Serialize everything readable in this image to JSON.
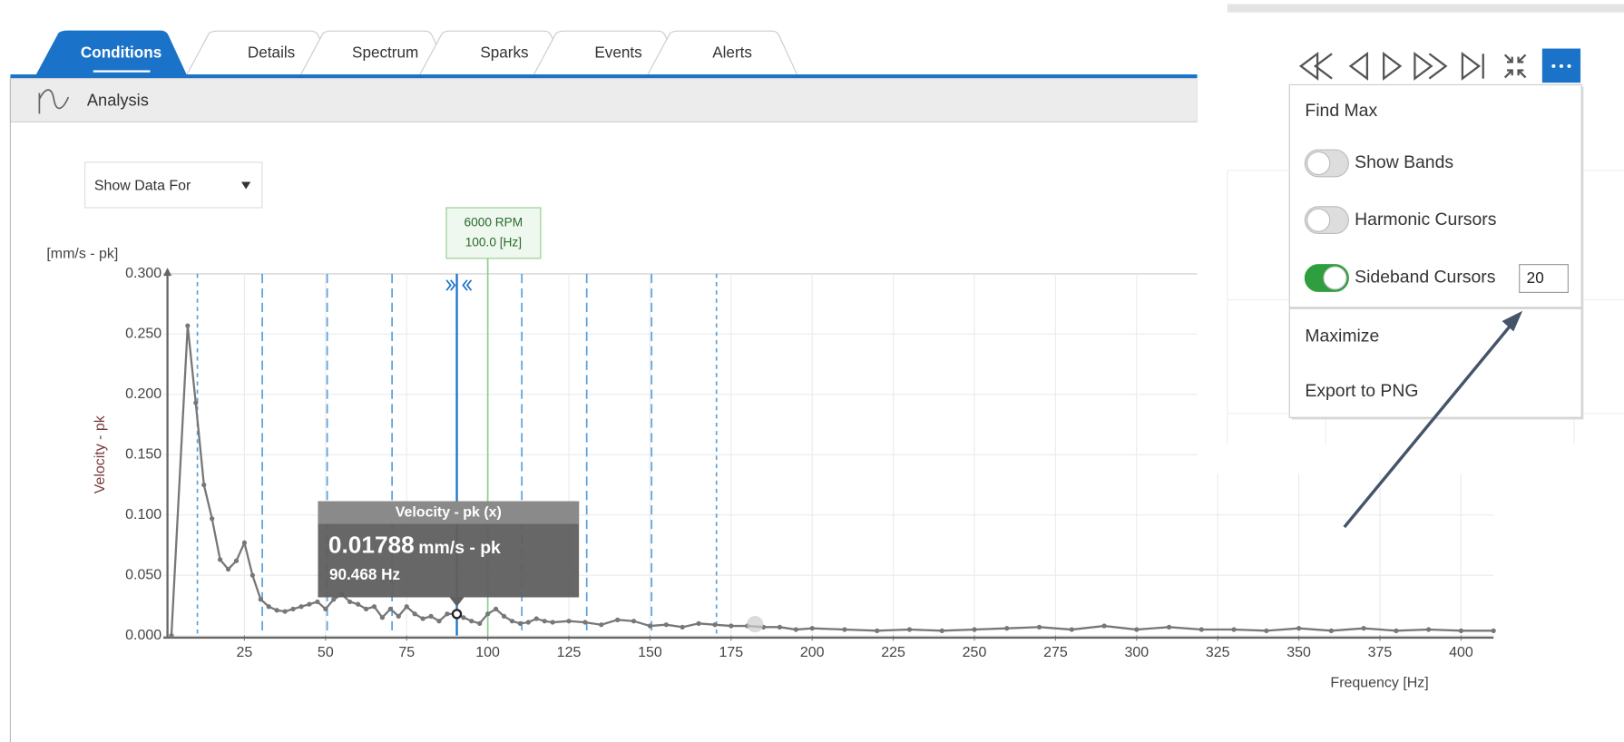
{
  "tabs": [
    "Conditions",
    "Details",
    "Spectrum",
    "Sparks",
    "Events",
    "Alerts"
  ],
  "active_tab": 0,
  "toolbar": {
    "title": "Analysis"
  },
  "dropdown": "Show Data For",
  "chart_data": {
    "type": "line",
    "x_label": "Frequency [Hz]",
    "y_label": "Velocity - pk",
    "y_unit": "[mm/s - pk]",
    "x": [
      2.5,
      7.5,
      10,
      12.5,
      15,
      17.5,
      20,
      22.5,
      25,
      27.5,
      30,
      32.5,
      35,
      37.5,
      40,
      42.5,
      45,
      47.5,
      50,
      52.5,
      55,
      57.5,
      60,
      62.5,
      65,
      67.5,
      70,
      72.5,
      75,
      77.5,
      80,
      82.5,
      85,
      87.5,
      90.468,
      92.5,
      95,
      97.5,
      100,
      102.5,
      105,
      107.5,
      110,
      112.5,
      115,
      117.5,
      120,
      125,
      130,
      135,
      140,
      145,
      150,
      155,
      160,
      165,
      170,
      175,
      180,
      185,
      190,
      195,
      200,
      210,
      220,
      230,
      240,
      250,
      260,
      270,
      280,
      290,
      300,
      310,
      320,
      330,
      340,
      350,
      360,
      370,
      380,
      390,
      400,
      410
    ],
    "series": [
      {
        "name": "Velocity - pk",
        "color": "#777777",
        "values": [
          0.0,
          0.257,
          0.193,
          0.125,
          0.097,
          0.063,
          0.055,
          0.062,
          0.077,
          0.05,
          0.03,
          0.024,
          0.021,
          0.02,
          0.022,
          0.024,
          0.026,
          0.028,
          0.022,
          0.03,
          0.034,
          0.028,
          0.026,
          0.022,
          0.024,
          0.015,
          0.022,
          0.016,
          0.024,
          0.018,
          0.014,
          0.016,
          0.012,
          0.018,
          0.01788,
          0.015,
          0.012,
          0.01,
          0.018,
          0.022,
          0.016,
          0.012,
          0.01,
          0.011,
          0.014,
          0.012,
          0.011,
          0.012,
          0.011,
          0.009,
          0.013,
          0.012,
          0.008,
          0.009,
          0.007,
          0.01,
          0.009,
          0.008,
          0.008,
          0.007,
          0.007,
          0.005,
          0.006,
          0.005,
          0.004,
          0.005,
          0.004,
          0.005,
          0.006,
          0.007,
          0.005,
          0.008,
          0.005,
          0.007,
          0.005,
          0.005,
          0.004,
          0.006,
          0.004,
          0.006,
          0.004,
          0.005,
          0.004,
          0.004
        ]
      }
    ],
    "xlim": [
      0,
      410
    ],
    "ylim": [
      0,
      0.3
    ],
    "xticks": [
      25,
      50,
      75,
      100,
      125,
      150,
      175,
      200,
      225,
      250,
      275,
      300,
      325,
      350,
      375,
      400
    ],
    "yticks": [
      {
        "value": 0,
        "label": "0.000"
      },
      {
        "value": 0.05,
        "label": "0.050"
      },
      {
        "value": 0.1,
        "label": "0.100"
      },
      {
        "value": 0.15,
        "label": "0.150"
      },
      {
        "value": 0.2,
        "label": "0.200"
      },
      {
        "value": 0.25,
        "label": "0.250"
      },
      {
        "value": 0.3,
        "label": "0.300"
      }
    ],
    "grid": true,
    "cursor": {
      "x": 90.468,
      "value": 0.01788,
      "title": "Velocity - pk (x)",
      "unit": "mm/s - pk",
      "x_text": "90.468 Hz",
      "color": "#1a73c8"
    },
    "sidebands": [
      10.5,
      30.5,
      50.5,
      70.5,
      110.5,
      130.5,
      150.5,
      170.5
    ],
    "sideband_color": "#5aa0dc",
    "marker": {
      "x": 100,
      "labels": [
        "6000 RPM",
        "100.0 [Hz]"
      ],
      "color": "#8fcf8f"
    }
  },
  "menu": {
    "items": [
      {
        "label": "Find Max"
      },
      {
        "label": "Show Bands",
        "toggle": false
      },
      {
        "label": "Harmonic Cursors",
        "toggle": false
      },
      {
        "label": "Sideband Cursors",
        "toggle": true,
        "input": "20"
      },
      {
        "label": "Maximize"
      },
      {
        "label": "Export to PNG"
      }
    ]
  }
}
